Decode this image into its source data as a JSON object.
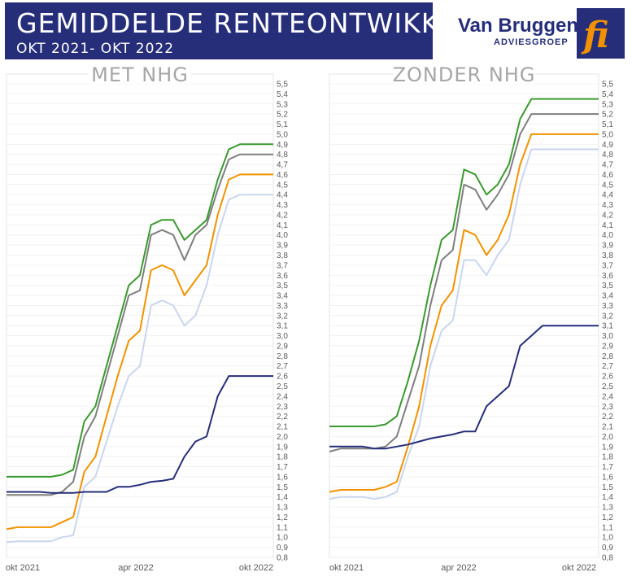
{
  "header": {
    "title": "GEMIDDELDE RENTEONTWIKKELING",
    "subtitle": "OKT 2021- OKT 2022",
    "brand_name": "Van Bruggen",
    "brand_sub": "ADVIESGROEP",
    "colors": {
      "band": "#262e7a",
      "logo_orange": "#f39200"
    }
  },
  "chart_data": [
    {
      "type": "line",
      "title": "MET NHG",
      "x_ticks": [
        "okt 2021",
        "apr 2022",
        "okt 2022"
      ],
      "y_range": [
        0.8,
        5.5
      ],
      "y_ticks": [
        "0,8",
        "0,9",
        "1,0",
        "1,1",
        "1,2",
        "1,3",
        "1,4",
        "1,5",
        "1,6",
        "1,7",
        "1,8",
        "1,9",
        "2,0",
        "2,1",
        "2,2",
        "2,3",
        "2,4",
        "2,5",
        "2,6",
        "2,7",
        "2,8",
        "2,9",
        "3,0",
        "3,1",
        "3,2",
        "3,3",
        "3,4",
        "3,5",
        "3,6",
        "3,7",
        "3,8",
        "3,9",
        "4,0",
        "4,1",
        "4,2",
        "4,3",
        "4,4",
        "4,5",
        "4,6",
        "4,7",
        "4,8",
        "4,9",
        "5,0",
        "5,1",
        "5,2",
        "5,3",
        "5,4",
        "5,5"
      ],
      "grid": true,
      "x": [
        "okt 2021",
        "",
        "",
        "",
        "",
        "",
        "",
        "",
        "",
        "",
        "",
        "",
        "apr 2022",
        "",
        "",
        "",
        "",
        "",
        "",
        "",
        "",
        "",
        "",
        "",
        "okt 2022"
      ],
      "series": [
        {
          "color": "#3a9a2e",
          "values": [
            1.6,
            1.6,
            1.6,
            1.6,
            1.6,
            1.62,
            1.67,
            2.15,
            2.3,
            2.7,
            3.1,
            3.5,
            3.6,
            4.1,
            4.15,
            4.15,
            3.95,
            4.05,
            4.15,
            4.55,
            4.85,
            4.9,
            4.9,
            4.9,
            4.9
          ]
        },
        {
          "color": "#7f7f7f",
          "values": [
            1.42,
            1.42,
            1.42,
            1.42,
            1.42,
            1.45,
            1.55,
            2.0,
            2.2,
            2.6,
            3.0,
            3.4,
            3.45,
            4.0,
            4.05,
            4.0,
            3.75,
            4.0,
            4.1,
            4.45,
            4.75,
            4.8,
            4.8,
            4.8,
            4.8
          ]
        },
        {
          "color": "#f39200",
          "values": [
            1.08,
            1.1,
            1.1,
            1.1,
            1.1,
            1.15,
            1.2,
            1.65,
            1.8,
            2.2,
            2.6,
            2.95,
            3.05,
            3.65,
            3.7,
            3.65,
            3.4,
            3.55,
            3.7,
            4.2,
            4.55,
            4.6,
            4.6,
            4.6,
            4.6
          ]
        },
        {
          "color": "#c9d6ef",
          "values": [
            0.95,
            0.96,
            0.96,
            0.96,
            0.96,
            1.0,
            1.02,
            1.5,
            1.6,
            1.95,
            2.3,
            2.6,
            2.7,
            3.3,
            3.35,
            3.3,
            3.1,
            3.2,
            3.5,
            4.0,
            4.35,
            4.4,
            4.4,
            4.4,
            4.4
          ]
        },
        {
          "color": "#262e7a",
          "values": [
            1.45,
            1.45,
            1.45,
            1.45,
            1.44,
            1.44,
            1.44,
            1.45,
            1.45,
            1.45,
            1.5,
            1.5,
            1.52,
            1.55,
            1.56,
            1.58,
            1.8,
            1.95,
            2.0,
            2.4,
            2.6,
            2.6,
            2.6,
            2.6,
            2.6
          ]
        }
      ]
    },
    {
      "type": "line",
      "title": "ZONDER NHG",
      "x_ticks": [
        "okt 2021",
        "apr 2022",
        "okt 2022"
      ],
      "y_range": [
        0.8,
        5.5
      ],
      "y_ticks": [
        "0,8",
        "0,9",
        "1,0",
        "1,1",
        "1,2",
        "1,3",
        "1,4",
        "1,5",
        "1,6",
        "1,7",
        "1,8",
        "1,9",
        "2,0",
        "2,1",
        "2,2",
        "2,3",
        "2,4",
        "2,5",
        "2,6",
        "2,7",
        "2,8",
        "2,9",
        "3,0",
        "3,1",
        "3,2",
        "3,3",
        "3,4",
        "3,5",
        "3,6",
        "3,7",
        "3,8",
        "3,9",
        "4,0",
        "4,1",
        "4,2",
        "4,3",
        "4,4",
        "4,5",
        "4,6",
        "4,7",
        "4,8",
        "4,9",
        "5,0",
        "5,1",
        "5,2",
        "5,3",
        "5,4",
        "5,5"
      ],
      "grid": true,
      "x": [
        "okt 2021",
        "",
        "",
        "",
        "",
        "",
        "",
        "",
        "",
        "",
        "",
        "",
        "apr 2022",
        "",
        "",
        "",
        "",
        "",
        "",
        "",
        "",
        "",
        "",
        "",
        "okt 2022"
      ],
      "series": [
        {
          "color": "#3a9a2e",
          "values": [
            2.1,
            2.1,
            2.1,
            2.1,
            2.1,
            2.12,
            2.2,
            2.55,
            2.95,
            3.5,
            3.95,
            4.05,
            4.65,
            4.6,
            4.4,
            4.5,
            4.7,
            5.15,
            5.35,
            5.35,
            5.35,
            5.35,
            5.35,
            5.35,
            5.35
          ]
        },
        {
          "color": "#7f7f7f",
          "values": [
            1.85,
            1.88,
            1.88,
            1.88,
            1.88,
            1.9,
            2.0,
            2.35,
            2.7,
            3.3,
            3.75,
            3.85,
            4.5,
            4.45,
            4.25,
            4.4,
            4.6,
            5.0,
            5.2,
            5.2,
            5.2,
            5.2,
            5.2,
            5.2,
            5.2
          ]
        },
        {
          "color": "#f39200",
          "values": [
            1.45,
            1.47,
            1.47,
            1.47,
            1.47,
            1.5,
            1.55,
            1.9,
            2.3,
            2.9,
            3.3,
            3.45,
            4.05,
            4.0,
            3.8,
            3.95,
            4.2,
            4.7,
            5.0,
            5.0,
            5.0,
            5.0,
            5.0,
            5.0,
            5.0
          ]
        },
        {
          "color": "#c9d6ef",
          "values": [
            1.38,
            1.4,
            1.4,
            1.4,
            1.38,
            1.4,
            1.45,
            1.8,
            2.1,
            2.7,
            3.05,
            3.15,
            3.75,
            3.75,
            3.6,
            3.8,
            3.95,
            4.5,
            4.85,
            4.85,
            4.85,
            4.85,
            4.85,
            4.85,
            4.85
          ]
        },
        {
          "color": "#262e7a",
          "values": [
            1.9,
            1.9,
            1.9,
            1.9,
            1.88,
            1.88,
            1.9,
            1.92,
            1.95,
            1.98,
            2.0,
            2.02,
            2.05,
            2.05,
            2.3,
            2.4,
            2.5,
            2.9,
            3.0,
            3.1,
            3.1,
            3.1,
            3.1,
            3.1,
            3.1
          ]
        }
      ]
    }
  ]
}
